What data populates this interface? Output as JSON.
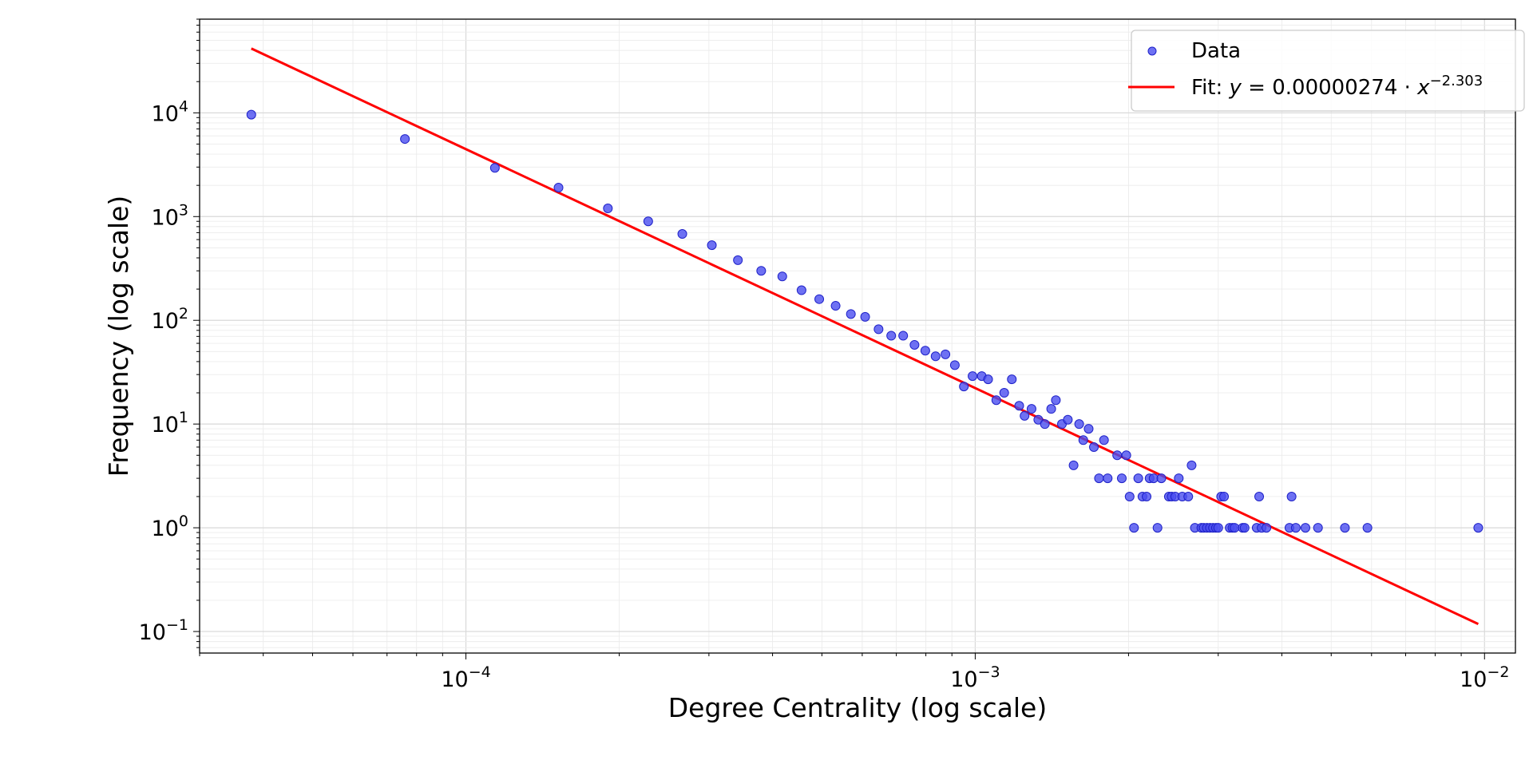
{
  "chart_data": {
    "type": "scatter",
    "title": "",
    "xlabel": "Degree Centrality (log scale)",
    "ylabel": "Frequency (log scale)",
    "xscale": "log",
    "yscale": "log",
    "xlim": [
      3e-05,
      0.0115
    ],
    "ylim": [
      0.062,
      80000
    ],
    "grid": true,
    "legend_position": "top-right",
    "x_ticks": [
      {
        "base": "10",
        "exp": "−4",
        "value": 0.0001
      },
      {
        "base": "10",
        "exp": "−3",
        "value": 0.001
      },
      {
        "base": "10",
        "exp": "−2",
        "value": 0.01
      }
    ],
    "y_ticks": [
      {
        "base": "10",
        "exp": "−1",
        "value": 0.1
      },
      {
        "base": "10",
        "exp": "0",
        "value": 1
      },
      {
        "base": "10",
        "exp": "1",
        "value": 10
      },
      {
        "base": "10",
        "exp": "2",
        "value": 100
      },
      {
        "base": "10",
        "exp": "3",
        "value": 1000
      },
      {
        "base": "10",
        "exp": "4",
        "value": 10000
      }
    ],
    "series": [
      {
        "name": "Data",
        "kind": "scatter",
        "color": "#4a4ef0",
        "points": [
          [
            3.79e-05,
            9600
          ],
          [
            7.59e-05,
            5600
          ],
          [
            0.000114,
            2950
          ],
          [
            0.000152,
            1900
          ],
          [
            0.00019,
            1200
          ],
          [
            0.000228,
            900
          ],
          [
            0.000266,
            680
          ],
          [
            0.000304,
            530
          ],
          [
            0.000342,
            380
          ],
          [
            0.00038,
            300
          ],
          [
            0.000418,
            265
          ],
          [
            0.000456,
            195
          ],
          [
            0.000494,
            160
          ],
          [
            0.000532,
            138
          ],
          [
            0.00057,
            115
          ],
          [
            0.000608,
            108
          ],
          [
            0.000646,
            82
          ],
          [
            0.000684,
            71
          ],
          [
            0.000722,
            71
          ],
          [
            0.00076,
            58
          ],
          [
            0.000798,
            51
          ],
          [
            0.000836,
            45
          ],
          [
            0.000874,
            47
          ],
          [
            0.000912,
            37
          ],
          [
            0.00095,
            23
          ],
          [
            0.000988,
            29
          ],
          [
            0.00103,
            29
          ],
          [
            0.00106,
            27
          ],
          [
            0.0011,
            17
          ],
          [
            0.00114,
            20
          ],
          [
            0.00118,
            27
          ],
          [
            0.00122,
            15
          ],
          [
            0.00125,
            12
          ],
          [
            0.00129,
            14
          ],
          [
            0.00133,
            11
          ],
          [
            0.00137,
            10
          ],
          [
            0.00141,
            14
          ],
          [
            0.00144,
            17
          ],
          [
            0.00148,
            10
          ],
          [
            0.00152,
            11
          ],
          [
            0.00156,
            4
          ],
          [
            0.0016,
            10
          ],
          [
            0.00163,
            7
          ],
          [
            0.00167,
            9
          ],
          [
            0.00171,
            6
          ],
          [
            0.00175,
            3
          ],
          [
            0.00179,
            7
          ],
          [
            0.00182,
            3
          ],
          [
            0.0019,
            5
          ],
          [
            0.00194,
            3
          ],
          [
            0.00198,
            5
          ],
          [
            0.00201,
            2
          ],
          [
            0.00205,
            1
          ],
          [
            0.00209,
            3
          ],
          [
            0.00213,
            2
          ],
          [
            0.00217,
            2
          ],
          [
            0.0022,
            3
          ],
          [
            0.00224,
            3
          ],
          [
            0.00228,
            1
          ],
          [
            0.00232,
            3
          ],
          [
            0.0024,
            2
          ],
          [
            0.00243,
            2
          ],
          [
            0.00247,
            2
          ],
          [
            0.00251,
            3
          ],
          [
            0.00255,
            2
          ],
          [
            0.00262,
            2
          ],
          [
            0.00266,
            4
          ],
          [
            0.0027,
            1
          ],
          [
            0.00278,
            1
          ],
          [
            0.00281,
            1
          ],
          [
            0.00285,
            1
          ],
          [
            0.00289,
            1
          ],
          [
            0.00293,
            1
          ],
          [
            0.00297,
            1
          ],
          [
            0.003,
            1
          ],
          [
            0.00304,
            2
          ],
          [
            0.00308,
            2
          ],
          [
            0.00316,
            1
          ],
          [
            0.0032,
            1
          ],
          [
            0.00323,
            1
          ],
          [
            0.00335,
            1
          ],
          [
            0.00338,
            1
          ],
          [
            0.00357,
            1
          ],
          [
            0.00361,
            2
          ],
          [
            0.00365,
            1
          ],
          [
            0.00373,
            1
          ],
          [
            0.00414,
            1
          ],
          [
            0.00418,
            2
          ],
          [
            0.00426,
            1
          ],
          [
            0.00445,
            1
          ],
          [
            0.00471,
            1
          ],
          [
            0.00532,
            1
          ],
          [
            0.00589,
            1
          ],
          [
            0.00972,
            1
          ]
        ]
      },
      {
        "name": "Fit: y = 0.00000274 · x^{−2.303}",
        "kind": "line",
        "color": "#ff0000",
        "coefficient": 2.74e-06,
        "exponent": -2.303,
        "x_range": [
          3.79e-05,
          0.00972
        ]
      }
    ]
  },
  "legend": {
    "data_label": "Data",
    "fit_prefix": "Fit: ",
    "fit_eq_var": "y",
    "fit_eq_mid": " = 0.00000274 · ",
    "fit_eq_x": "x",
    "fit_eq_exp": "−2.303"
  }
}
